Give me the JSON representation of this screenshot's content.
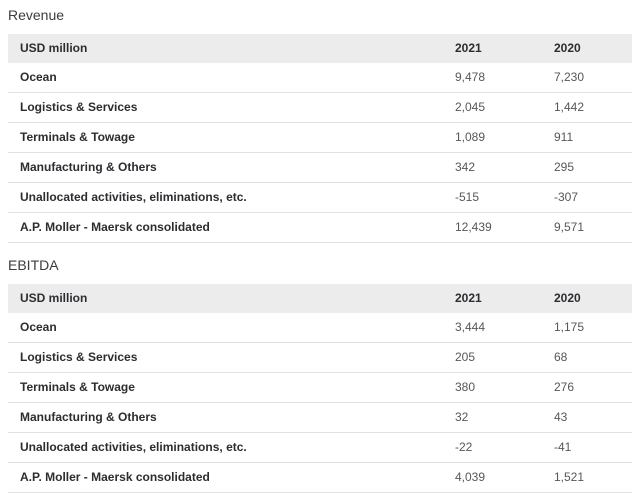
{
  "colors": {
    "page_background": "#ffffff",
    "header_background": "#ececed",
    "title_text": "#3b3c40",
    "label_text": "#2c2d31",
    "value_text": "#56575b",
    "row_divider": "#e2e2e3"
  },
  "sections": [
    {
      "title": "Revenue",
      "table": {
        "headers": [
          "USD million",
          "2021",
          "2020"
        ],
        "rows": [
          {
            "label": "Ocean",
            "y2021": "9,478",
            "y2020": "7,230"
          },
          {
            "label": "Logistics & Services",
            "y2021": "2,045",
            "y2020": "1,442"
          },
          {
            "label": "Terminals & Towage",
            "y2021": "1,089",
            "y2020": "911"
          },
          {
            "label": "Manufacturing & Others",
            "y2021": "342",
            "y2020": "295"
          },
          {
            "label": "Unallocated activities, eliminations, etc.",
            "y2021": "-515",
            "y2020": "-307"
          },
          {
            "label": "A.P. Moller - Maersk consolidated",
            "y2021": "12,439",
            "y2020": "9,571"
          }
        ]
      }
    },
    {
      "title": "EBITDA",
      "table": {
        "headers": [
          "USD million",
          "2021",
          "2020"
        ],
        "rows": [
          {
            "label": "Ocean",
            "y2021": "3,444",
            "y2020": "1,175"
          },
          {
            "label": "Logistics & Services",
            "y2021": "205",
            "y2020": "68"
          },
          {
            "label": "Terminals & Towage",
            "y2021": "380",
            "y2020": "276"
          },
          {
            "label": "Manufacturing & Others",
            "y2021": "32",
            "y2020": "43"
          },
          {
            "label": "Unallocated activities, eliminations, etc.",
            "y2021": "-22",
            "y2020": "-41"
          },
          {
            "label": "A.P. Moller - Maersk consolidated",
            "y2021": "4,039",
            "y2020": "1,521"
          }
        ]
      }
    }
  ]
}
